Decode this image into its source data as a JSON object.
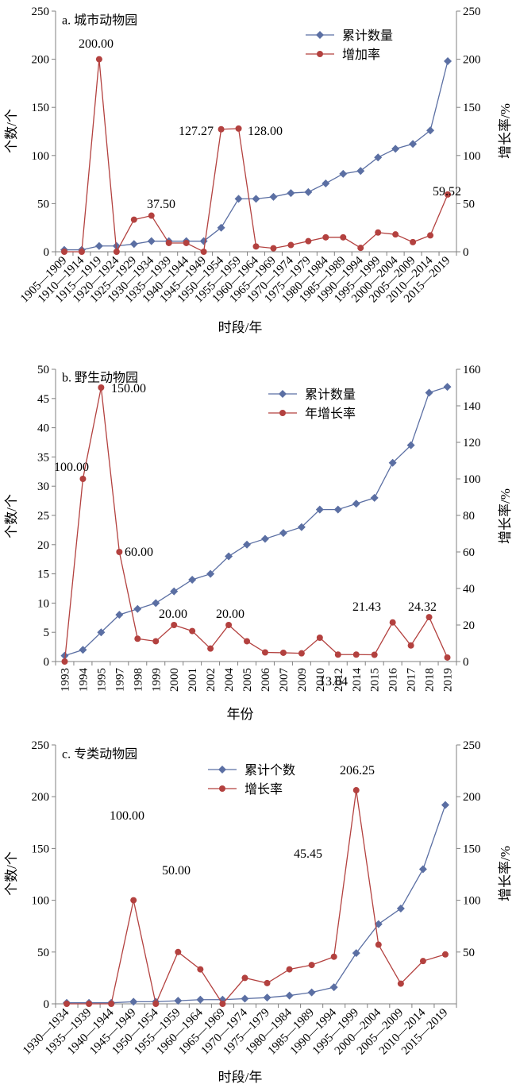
{
  "colors": {
    "cumulative": "#5B6FA3",
    "rate": "#B3413F"
  },
  "chart_data": [
    {
      "type": "line",
      "title": "a. 城市动物园",
      "xlabel": "时段/年",
      "ylabel_left": "个数/个",
      "ylabel_right": "增长率/%",
      "ylim_left": [
        0,
        250
      ],
      "ylim_right": [
        0,
        250
      ],
      "yticks_left": [
        0,
        50,
        100,
        150,
        200,
        250
      ],
      "yticks_right": [
        0,
        50,
        100,
        150,
        200,
        250
      ],
      "legend_position": "top-right",
      "categories": [
        "1905—1909",
        "1910—1914",
        "1915—1919",
        "1920—1924",
        "1925—1929",
        "1930—1934",
        "1935—1939",
        "1940—1944",
        "1945—1949",
        "1950—1954",
        "1955—1959",
        "1960—1964",
        "1965—1969",
        "1970—1974",
        "1975—1979",
        "1980—1984",
        "1985—1989",
        "1990—1994",
        "1995—1999",
        "2000—2004",
        "2005—2009",
        "2010—2014",
        "2015—2019"
      ],
      "series": [
        {
          "name": "累计数量",
          "axis": "left",
          "marker": "diamond",
          "values": [
            2,
            2,
            6,
            6,
            8,
            11,
            11,
            11,
            11,
            25,
            55,
            55,
            57,
            61,
            62,
            71,
            81,
            84,
            98,
            107,
            112,
            126,
            198
          ]
        },
        {
          "name": "增加率",
          "axis": "right",
          "marker": "circle",
          "values": [
            0,
            0,
            200,
            0,
            33.33,
            37.5,
            9.09,
            9.09,
            0,
            127.27,
            128,
            5.5,
            3.6,
            7,
            11,
            15,
            15,
            4,
            20,
            18,
            10,
            17,
            59.52
          ]
        }
      ],
      "annotations": [
        {
          "text": "200.00",
          "index": 2
        },
        {
          "text": "37.50",
          "index": 5
        },
        {
          "text": "127.27",
          "index": 9
        },
        {
          "text": "128.00",
          "index": 10
        },
        {
          "text": "59.52",
          "index": 22
        }
      ]
    },
    {
      "type": "line",
      "title": "b. 野生动物园",
      "xlabel": "年份",
      "ylabel_left": "个数/个",
      "ylabel_right": "增长率/%",
      "ylim_left": [
        0,
        50
      ],
      "ylim_right": [
        0,
        160
      ],
      "yticks_left": [
        0,
        5,
        10,
        15,
        20,
        25,
        30,
        35,
        40,
        45,
        50
      ],
      "yticks_right": [
        0,
        20,
        40,
        60,
        80,
        100,
        120,
        140,
        160
      ],
      "legend_position": "top-right",
      "categories": [
        "1993",
        "1994",
        "1995",
        "1997",
        "1998",
        "1999",
        "2000",
        "2001",
        "2002",
        "2004",
        "2005",
        "2006",
        "2007",
        "2009",
        "2010",
        "2012",
        "2014",
        "2015",
        "2016",
        "2017",
        "2018",
        "2019"
      ],
      "series": [
        {
          "name": "累计数量",
          "axis": "left",
          "marker": "diamond",
          "values": [
            1,
            2,
            5,
            8,
            9,
            10,
            12,
            14,
            15,
            18,
            20,
            21,
            22,
            23,
            26,
            26,
            27,
            28,
            34,
            37,
            46,
            47
          ]
        },
        {
          "name": "年增长率",
          "axis": "right",
          "marker": "circle",
          "values": [
            0,
            100,
            150,
            60,
            12.5,
            11.1,
            20,
            16.7,
            7.1,
            20,
            11.1,
            5,
            4.8,
            4.5,
            13.04,
            3.8,
            3.8,
            3.7,
            21.43,
            8.8,
            24.32,
            2.2
          ]
        }
      ],
      "annotations": [
        {
          "text": "100.00",
          "index": 1
        },
        {
          "text": "150.00",
          "index": 2
        },
        {
          "text": "60.00",
          "index": 3
        },
        {
          "text": "20.00",
          "index": 6
        },
        {
          "text": "20.00",
          "index": 9
        },
        {
          "text": "13.04",
          "index": 14
        },
        {
          "text": "21.43",
          "index": 18
        },
        {
          "text": "24.32",
          "index": 20
        }
      ]
    },
    {
      "type": "line",
      "title": "c. 专类动物园",
      "xlabel": "时段/年",
      "ylabel_left": "个数/个",
      "ylabel_right": "增长率/%",
      "ylim_left": [
        0,
        250
      ],
      "ylim_right": [
        0,
        250
      ],
      "yticks_left": [
        0,
        50,
        100,
        150,
        200,
        250
      ],
      "yticks_right": [
        50,
        100,
        150,
        200,
        250
      ],
      "legend_position": "top-center",
      "categories": [
        "1930—1934",
        "1935—1939",
        "1940—1944",
        "1945—1949",
        "1950—1954",
        "1955—1959",
        "1960—1964",
        "1965—1969",
        "1970—1974",
        "1975—1979",
        "1980—1984",
        "1985—1989",
        "1990—1994",
        "1995—1999",
        "2000—2004",
        "2005—2009",
        "2010—2014",
        "2015—2019"
      ],
      "series": [
        {
          "name": "累计个数",
          "axis": "left",
          "marker": "diamond",
          "values": [
            1,
            1,
            1,
            2,
            2,
            3,
            4,
            4,
            5,
            6,
            8,
            11,
            16,
            49,
            77,
            92,
            130,
            192
          ]
        },
        {
          "name": "增长率",
          "axis": "right",
          "marker": "circle",
          "values": [
            0,
            0,
            0,
            100,
            0,
            50,
            33.3,
            0,
            25,
            20,
            33.3,
            37.5,
            45.45,
            206.25,
            57.1,
            19.5,
            41.3,
            47.7
          ]
        }
      ],
      "annotations": [
        {
          "text": "100.00",
          "index": 3
        },
        {
          "text": "50.00",
          "index": 5
        },
        {
          "text": "45.45",
          "index": 12
        },
        {
          "text": "206.25",
          "index": 13
        }
      ]
    }
  ]
}
